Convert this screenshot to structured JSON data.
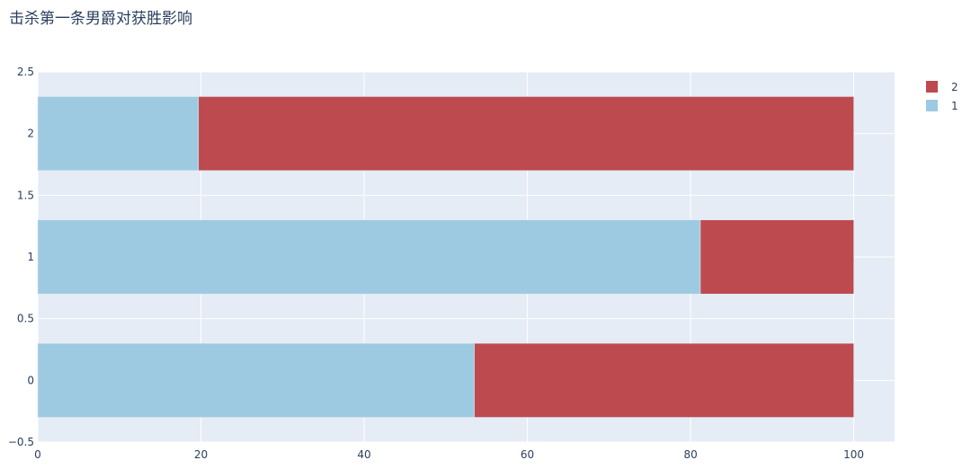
{
  "chart_data": {
    "type": "bar",
    "orientation": "horizontal",
    "barmode": "stack",
    "title": "击杀第一条男爵对获胜影响",
    "categories": [
      0,
      1,
      2
    ],
    "series": [
      {
        "name": "1",
        "values": [
          53.5,
          81.2,
          19.7
        ],
        "color": "#9ecae1"
      },
      {
        "name": "2",
        "values": [
          46.5,
          18.8,
          80.3
        ],
        "color": "#bd4a4f"
      }
    ],
    "xlim": [
      0,
      105
    ],
    "ylim": [
      -0.5,
      2.5
    ],
    "x_ticks": [
      "0",
      "20",
      "40",
      "60",
      "80",
      "100"
    ],
    "y_ticks": [
      "−0.5",
      "0",
      "0.5",
      "1",
      "1.5",
      "2",
      "2.5"
    ],
    "grid": true,
    "legend_position": "top-right",
    "plot_background": "#e5ecf6"
  }
}
